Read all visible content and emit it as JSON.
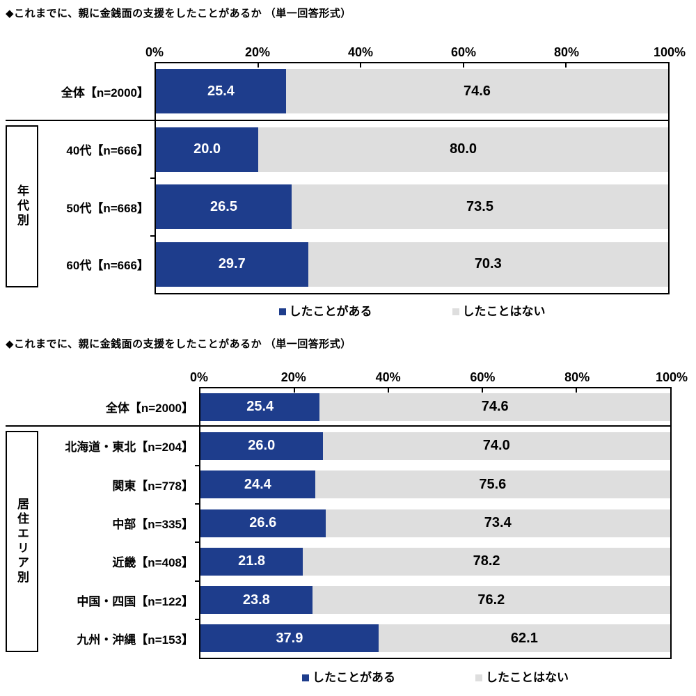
{
  "colors": {
    "bar_yes": "#1e3d8c",
    "bar_no": "#dedede",
    "bar_yes_text": "#ffffff",
    "bar_no_text": "#000000",
    "frame": "#000000",
    "background": "#ffffff"
  },
  "chart_data": [
    {
      "type": "bar",
      "orientation": "horizontal",
      "stacked": true,
      "title": "◆これまでに、親に金銭面の支援をしたことがあるか （単一回答形式）",
      "axis_ticks": [
        "0%",
        "20%",
        "40%",
        "60%",
        "80%",
        "100%"
      ],
      "xlim": [
        0,
        100
      ],
      "grid": false,
      "legend_position": "bottom",
      "group_label": "年代別",
      "group_rows_start": 1,
      "categories": [
        "全体【n=2000】",
        "40代【n=666】",
        "50代【n=668】",
        "60代【n=666】"
      ],
      "series": [
        {
          "name": "したことがある",
          "color": "#1e3d8c",
          "text_color": "#ffffff",
          "values": [
            "25.4",
            "20.0",
            "26.5",
            "29.7"
          ]
        },
        {
          "name": "したことはない",
          "color": "#dedede",
          "text_color": "#000000",
          "values": [
            "74.6",
            "80.0",
            "73.5",
            "70.3"
          ]
        }
      ]
    },
    {
      "type": "bar",
      "orientation": "horizontal",
      "stacked": true,
      "title": "◆これまでに、親に金銭面の支援をしたことがあるか （単一回答形式）",
      "axis_ticks": [
        "0%",
        "20%",
        "40%",
        "60%",
        "80%",
        "100%"
      ],
      "xlim": [
        0,
        100
      ],
      "grid": false,
      "legend_position": "bottom",
      "group_label": "居住エリア別",
      "group_rows_start": 1,
      "categories": [
        "全体【n=2000】",
        "北海道・東北【n=204】",
        "関東【n=778】",
        "中部【n=335】",
        "近畿【n=408】",
        "中国・四国【n=122】",
        "九州・沖縄【n=153】"
      ],
      "series": [
        {
          "name": "したことがある",
          "color": "#1e3d8c",
          "text_color": "#ffffff",
          "values": [
            "25.4",
            "26.0",
            "24.4",
            "26.6",
            "21.8",
            "23.8",
            "37.9"
          ]
        },
        {
          "name": "したことはない",
          "color": "#dedede",
          "text_color": "#000000",
          "values": [
            "74.6",
            "74.0",
            "75.6",
            "73.4",
            "78.2",
            "76.2",
            "62.1"
          ]
        }
      ]
    }
  ]
}
